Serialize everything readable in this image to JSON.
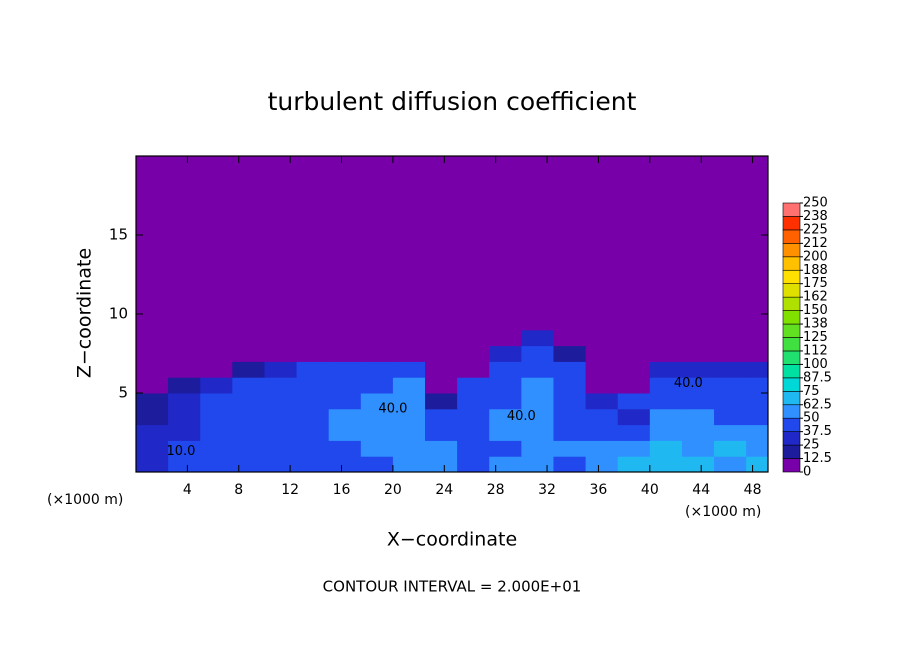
{
  "chart_data": {
    "type": "heatmap",
    "title": "turbulent diffusion coefficient",
    "xlabel": "X−coordinate",
    "ylabel": "Z−coordinate",
    "x_unit_left": "(×1000 m)",
    "x_unit_right": "(×1000 m)",
    "footer": "CONTOUR INTERVAL = 2.000E+01",
    "xlim": [
      0,
      49.2
    ],
    "ylim": [
      0,
      20
    ],
    "xticks": [
      4,
      8,
      12,
      16,
      20,
      24,
      28,
      32,
      36,
      40,
      44,
      48
    ],
    "yticks": [
      5,
      10,
      15
    ],
    "x_bins": [
      0,
      2.5,
      5,
      7.5,
      10,
      12.5,
      15,
      17.5,
      20,
      22.5,
      25,
      27.5,
      30,
      32.5,
      35,
      37.5,
      40,
      42.5,
      45,
      47.5,
      49.2
    ],
    "z_bins": [
      0,
      1,
      2,
      3,
      4,
      5,
      6,
      7,
      8,
      9,
      20
    ],
    "values": [
      [
        30,
        40,
        45,
        45,
        40,
        45,
        45,
        45,
        50,
        55,
        45,
        50,
        60,
        45,
        55,
        70,
        65,
        70,
        60,
        65
      ],
      [
        35,
        40,
        40,
        45,
        45,
        45,
        45,
        50,
        55,
        55,
        45,
        45,
        55,
        50,
        55,
        60,
        70,
        60,
        65,
        60
      ],
      [
        30,
        35,
        40,
        45,
        40,
        45,
        50,
        55,
        60,
        45,
        45,
        50,
        60,
        45,
        45,
        40,
        60,
        55,
        55,
        50
      ],
      [
        20,
        35,
        40,
        45,
        45,
        45,
        50,
        55,
        60,
        40,
        45,
        50,
        55,
        45,
        40,
        35,
        50,
        50,
        45,
        45
      ],
      [
        15,
        30,
        40,
        45,
        45,
        45,
        45,
        50,
        55,
        20,
        45,
        45,
        50,
        45,
        35,
        40,
        45,
        45,
        45,
        45
      ],
      [
        10,
        15,
        35,
        40,
        45,
        45,
        45,
        45,
        50,
        0,
        45,
        45,
        50,
        45,
        10,
        0,
        45,
        45,
        45,
        40
      ],
      [
        0,
        0,
        10,
        20,
        35,
        40,
        40,
        40,
        40,
        0,
        10,
        40,
        45,
        40,
        0,
        0,
        30,
        35,
        35,
        30
      ],
      [
        0,
        0,
        0,
        0,
        0,
        0,
        10,
        10,
        5,
        0,
        0,
        30,
        40,
        20,
        0,
        0,
        0,
        0,
        0,
        0
      ],
      [
        0,
        0,
        0,
        0,
        0,
        0,
        0,
        0,
        0,
        0,
        0,
        10,
        30,
        0,
        0,
        0,
        0,
        0,
        0,
        0
      ],
      [
        0,
        0,
        0,
        0,
        0,
        0,
        0,
        0,
        0,
        0,
        0,
        0,
        0,
        0,
        0,
        0,
        0,
        0,
        0,
        0
      ]
    ],
    "cticks": [
      0,
      12.5,
      25,
      37.5,
      50,
      62.5,
      75,
      87.5,
      100,
      {
        "value": 112.5,
        "label": "112"
      },
      125,
      {
        "value": 137.5,
        "label": "138"
      },
      150,
      {
        "value": 162.5,
        "label": "162"
      },
      175,
      {
        "value": 187.5,
        "label": "188"
      },
      200,
      {
        "value": 212.5,
        "label": "212"
      },
      225,
      {
        "value": 237.5,
        "label": "238"
      },
      250
    ],
    "colors": [
      "#7800a8",
      "#1c1c9c",
      "#2028c8",
      "#2048ec",
      "#3090ff",
      "#20b8f0",
      "#00d8d8",
      "#00e0a0",
      "#20e070",
      "#40e040",
      "#60e020",
      "#80e000",
      "#b0e000",
      "#e0e000",
      "#ffe000",
      "#ffc000",
      "#ff9000",
      "#ff6000",
      "#ff3000",
      "#ff7070"
    ],
    "contour_labels": [
      {
        "text": "40.0",
        "x": 20,
        "y": 4
      },
      {
        "text": "40.0",
        "x": 30,
        "y": 3.5
      },
      {
        "text": "40.0",
        "x": 43,
        "y": 5.6
      },
      {
        "text": "10.0",
        "x": 3.5,
        "y": 1.3
      }
    ]
  }
}
